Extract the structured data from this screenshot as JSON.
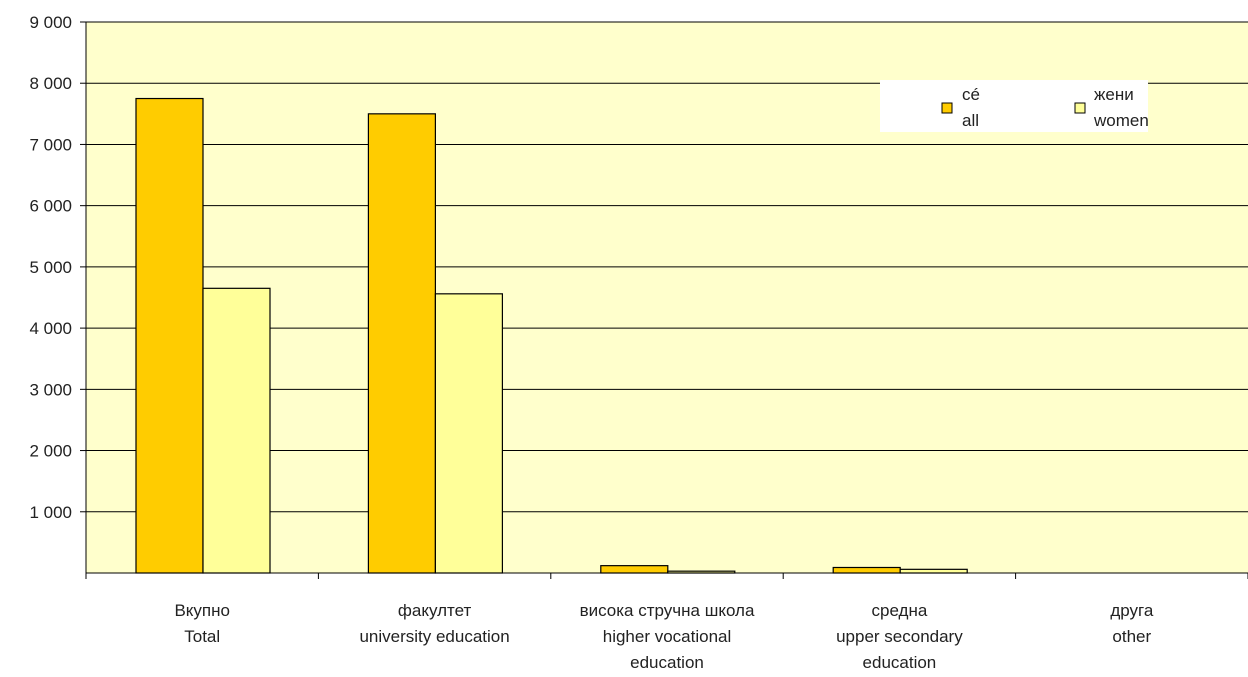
{
  "chart_data": {
    "type": "bar",
    "categories": [
      [
        "Вкупно",
        "Total"
      ],
      [
        "факултет",
        "university education"
      ],
      [
        "висока стручна школа",
        "higher vocational",
        "education"
      ],
      [
        "средна",
        "upper secondary",
        "education"
      ],
      [
        "друга",
        "other"
      ]
    ],
    "series": [
      {
        "name": [
          "сé",
          "all"
        ],
        "values": [
          7750,
          7500,
          120,
          90,
          0
        ],
        "color": "#FFCC00"
      },
      {
        "name": [
          "жени",
          "women"
        ],
        "values": [
          4650,
          4560,
          30,
          60,
          0
        ],
        "color": "#FFFF99"
      }
    ],
    "ylim": [
      0,
      9000
    ],
    "yticks": [
      1000,
      2000,
      3000,
      4000,
      5000,
      6000,
      7000,
      8000,
      9000
    ],
    "ytick_labels": [
      "1 000",
      "2 000",
      "3 000",
      "4 000",
      "5 000",
      "6 000",
      "7 000",
      "8 000",
      "9 000"
    ],
    "grid": true,
    "legend_position": "top-right",
    "plot_background": "#FFFFCC",
    "gridline_color": "#000000"
  }
}
